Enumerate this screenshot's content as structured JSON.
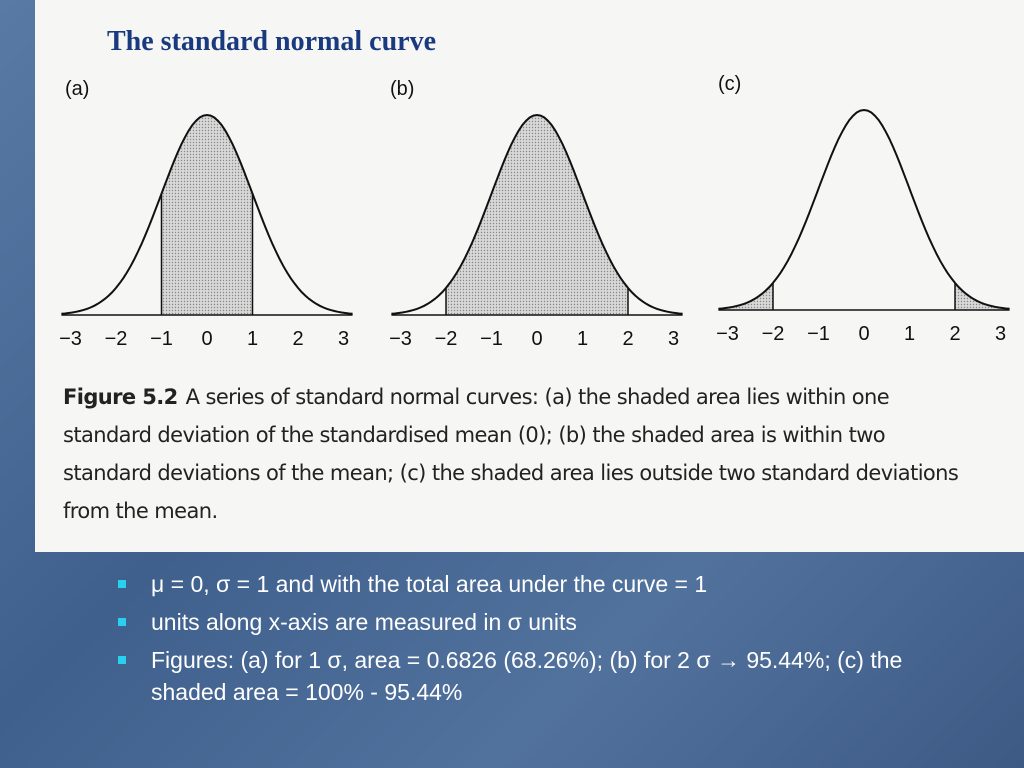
{
  "header": {
    "title": "The standard normal curve"
  },
  "figure": {
    "panels": [
      {
        "label": "(a)",
        "ticks": [
          "−3",
          "−2",
          "−1",
          "0",
          "1",
          "2",
          "3"
        ]
      },
      {
        "label": "(b)",
        "ticks": [
          "−3",
          "−2",
          "−1",
          "0",
          "1",
          "2",
          "3"
        ]
      },
      {
        "label": "(c)",
        "ticks": [
          "−3",
          "−2",
          "−1",
          "0",
          "1",
          "2",
          "3"
        ]
      }
    ],
    "caption": {
      "label": "Figure 5.2",
      "text": "A series of standard normal curves: (a) the shaded area lies within one standard deviation of the standardised mean (0); (b) the shaded area is within two standard deviations of the mean; (c) the shaded area lies outside two standard deviations from the mean."
    }
  },
  "bullets": [
    "μ = 0, σ = 1 and with the total area under the curve = 1",
    "units along x-axis are measured in σ units",
    "Figures: (a) for 1 σ, area = 0.6826 (68.26%); (b) for 2 σ → 95.44%; (c) the shaded area = 100% - 95.44%"
  ]
}
